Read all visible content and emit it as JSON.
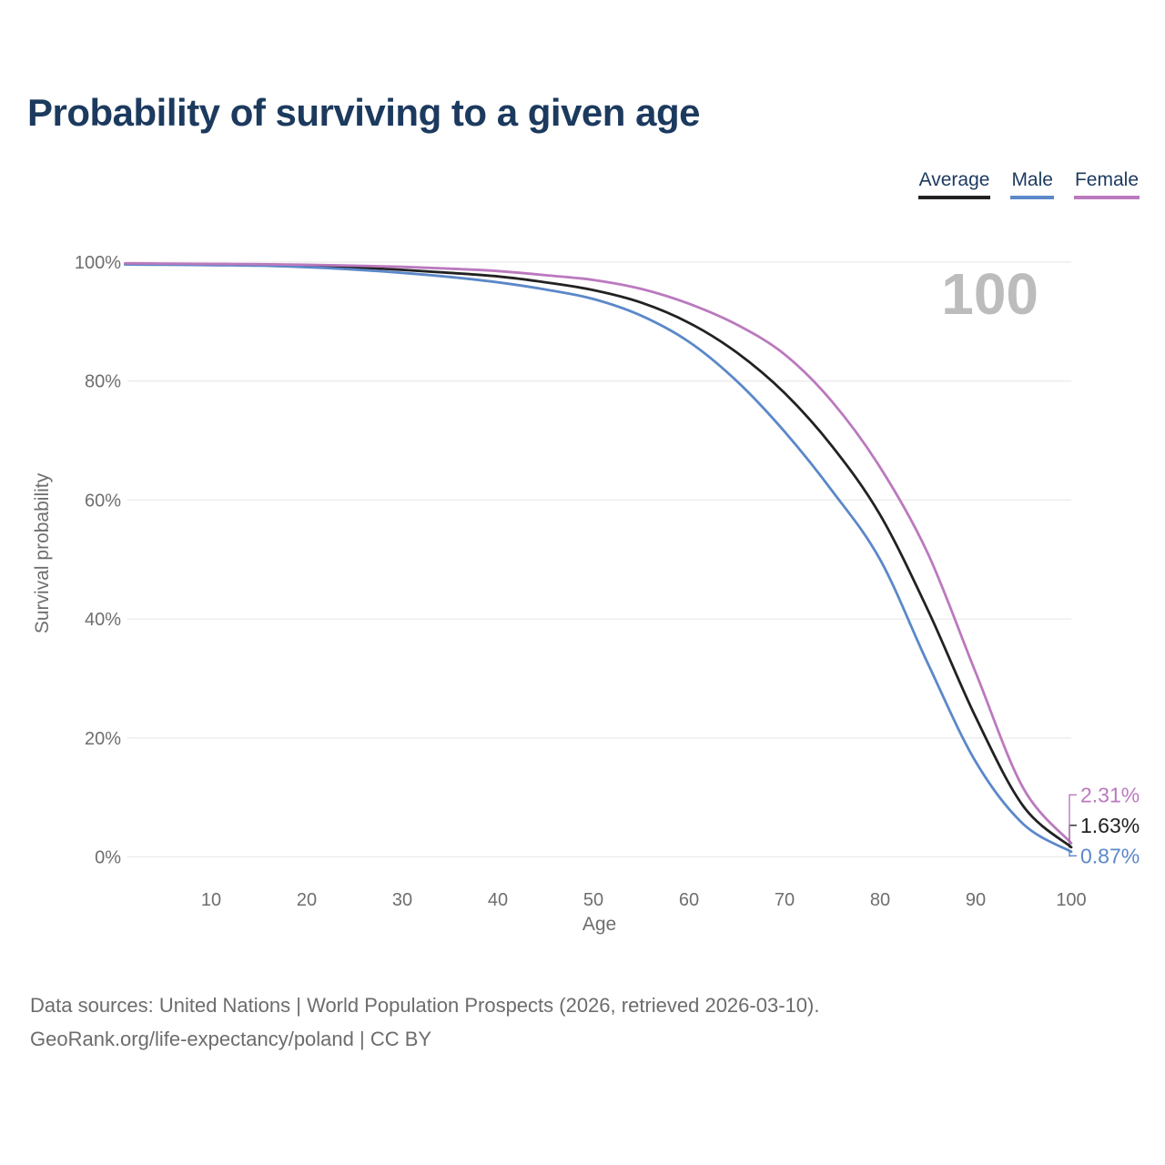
{
  "title": "Probability of surviving to a given age",
  "legend": {
    "items": [
      {
        "label": "Average",
        "color": "#222222"
      },
      {
        "label": "Male",
        "color": "#5b88c9"
      },
      {
        "label": "Female",
        "color": "#bb79be"
      }
    ]
  },
  "chart_data": {
    "type": "line",
    "title": "Probability of surviving to a given age",
    "xlabel": "Age",
    "ylabel": "Survival probability",
    "x_ticks": [
      10,
      20,
      30,
      40,
      50,
      60,
      70,
      80,
      90,
      100
    ],
    "y_ticks": [
      0,
      20,
      40,
      60,
      80,
      100
    ],
    "y_tick_suffix": "%",
    "xlim": [
      1,
      100
    ],
    "ylim": [
      0,
      100
    ],
    "grid": "horizontal",
    "legend_position": "top-right",
    "watermark": "100",
    "x": [
      1,
      5,
      10,
      15,
      20,
      25,
      30,
      35,
      40,
      45,
      50,
      55,
      60,
      65,
      70,
      75,
      80,
      85,
      90,
      95,
      100
    ],
    "series": [
      {
        "name": "Average",
        "color": "#222222",
        "values": [
          99.7,
          99.65,
          99.6,
          99.5,
          99.35,
          99.1,
          98.7,
          98.2,
          97.6,
          96.6,
          95.3,
          93.2,
          89.8,
          84.8,
          78.0,
          69.0,
          57.5,
          41.5,
          23.5,
          8.5,
          1.63
        ],
        "end_label": "1.63%"
      },
      {
        "name": "Male",
        "color": "#5b88c9",
        "values": [
          99.6,
          99.55,
          99.5,
          99.4,
          99.15,
          98.75,
          98.2,
          97.5,
          96.6,
          95.4,
          93.8,
          91.0,
          86.6,
          80.0,
          71.5,
          61.5,
          50.0,
          32.5,
          16.0,
          5.5,
          0.87
        ],
        "end_label": "0.87%"
      },
      {
        "name": "Female",
        "color": "#bb79be",
        "values": [
          99.8,
          99.75,
          99.7,
          99.65,
          99.55,
          99.4,
          99.2,
          98.9,
          98.5,
          97.8,
          97.0,
          95.5,
          93.0,
          89.5,
          84.5,
          76.5,
          65.5,
          51.0,
          31.0,
          11.5,
          2.31
        ],
        "end_label": "2.31%"
      }
    ]
  },
  "footer": {
    "line1": "Data sources: United Nations | World Population Prospects (2026, retrieved 2026-03-10).",
    "line2": "GeoRank.org/life-expectancy/poland | CC BY"
  }
}
